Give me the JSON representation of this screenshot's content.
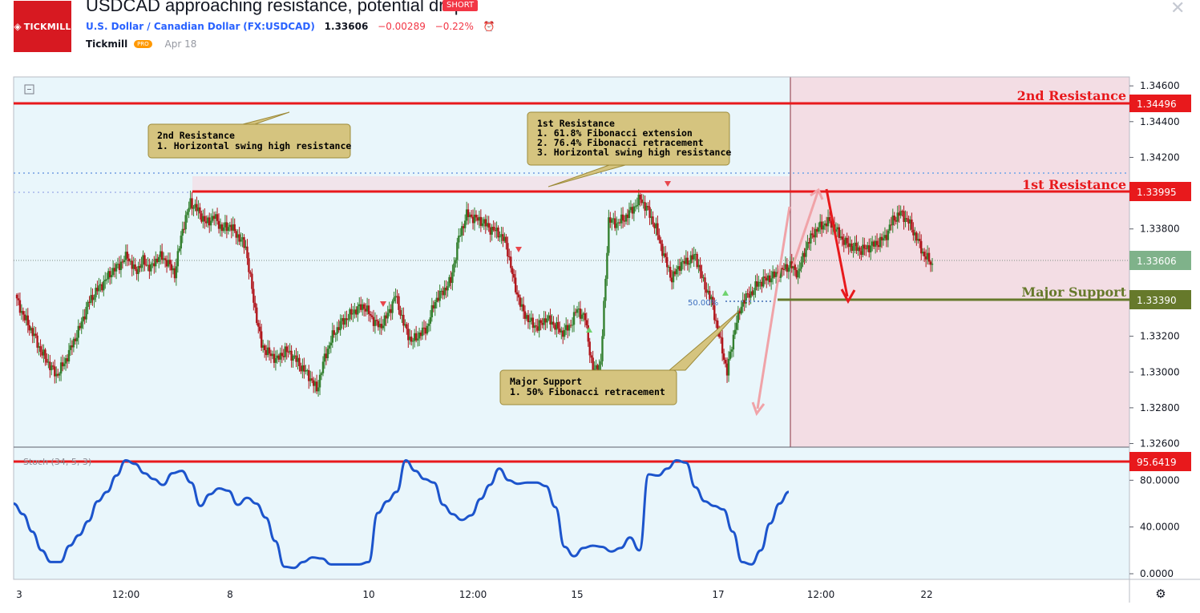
{
  "header": {
    "logo_text": "TICKMILL",
    "title": "USDCAD approaching resistance, potential drop!",
    "badge": "SHORT",
    "symbol_name": "U.S. Dollar / Canadian Dollar",
    "symbol_code": "(FX:USDCAD)",
    "price": "1.33606",
    "change": "−0.00289",
    "change_pct": "−0.22%",
    "author": "Tickmill",
    "author_badge": "PRO",
    "date": "Apr 18",
    "alarm_icon": "alarm-clock-icon",
    "close_icon": "close-icon"
  },
  "colors": {
    "resistance": "#e8191c",
    "support": "#66792b",
    "current": "#7fb28a",
    "up_candle": "#33802f",
    "down_candle": "#b0161c",
    "stoch": "#1c54cc",
    "zone": "#f3dde4",
    "background": "#e9f6fb",
    "callout_fill": "#d5c47f"
  },
  "labels": {
    "second_resistance": "2nd Resistance",
    "first_resistance": "1st Resistance",
    "major_support": "Major Support",
    "fib_50": "50.00%",
    "stoch_indicator": "Stoch (34, 5, 3)"
  },
  "callouts": {
    "second_res": [
      "2nd Resistance",
      "1. Horizontal swing high resistance"
    ],
    "first_res": [
      "1st Resistance",
      "1. 61.8% Fibonacci extension",
      "2. 76.4% Fibonacci retracement",
      "3. Horizontal swing high resistance"
    ],
    "support": [
      "Major Support",
      "1. 50% Fibonacci retracement"
    ]
  },
  "chart_data": [
    {
      "type": "candlestick",
      "symbol": "USDCAD",
      "y_ticks": [
        "1.34600",
        "1.34400",
        "1.34200",
        "1.34000",
        "1.33800",
        "1.33600",
        "1.33400",
        "1.33200",
        "1.33000",
        "1.32800",
        "1.32600"
      ],
      "ylim": [
        1.3258,
        1.3465
      ],
      "x_ticks": [
        "3",
        "12:00",
        "8",
        "10",
        "12:00",
        "15",
        "17",
        "12:00",
        "22"
      ],
      "price_labels": {
        "second_resistance": "1.34496",
        "first_resistance": "1.33995",
        "current": "1.33606",
        "major_support": "1.33390"
      },
      "levels": {
        "second_resistance": 1.34496,
        "first_resistance": 1.33995,
        "current": 1.33606,
        "major_support": 1.3339
      },
      "close_path": [
        1.334,
        1.333,
        1.3322,
        1.3312,
        1.3305,
        1.3298,
        1.3305,
        1.3315,
        1.3325,
        1.3338,
        1.3345,
        1.335,
        1.3356,
        1.336,
        1.3365,
        1.3356,
        1.3362,
        1.3358,
        1.3365,
        1.3362,
        1.3355,
        1.338,
        1.3395,
        1.339,
        1.3383,
        1.3387,
        1.338,
        1.3382,
        1.3376,
        1.337,
        1.334,
        1.3315,
        1.331,
        1.3307,
        1.3312,
        1.3309,
        1.3303,
        1.3298,
        1.329,
        1.3308,
        1.332,
        1.3327,
        1.3331,
        1.3335,
        1.3337,
        1.333,
        1.3325,
        1.3332,
        1.3343,
        1.3327,
        1.3317,
        1.3321,
        1.3325,
        1.334,
        1.3345,
        1.3351,
        1.3375,
        1.3388,
        1.3386,
        1.3384,
        1.338,
        1.3378,
        1.3372,
        1.335,
        1.3335,
        1.3328,
        1.3325,
        1.333,
        1.3327,
        1.3322,
        1.3325,
        1.3335,
        1.333,
        1.33,
        1.3305,
        1.3385,
        1.3383,
        1.3386,
        1.3391,
        1.3397,
        1.339,
        1.338,
        1.3365,
        1.3352,
        1.336,
        1.3362,
        1.3365,
        1.335,
        1.334,
        1.332,
        1.33,
        1.3325,
        1.334,
        1.3344,
        1.335,
        1.3352,
        1.3354,
        1.3357,
        1.336,
        1.3355,
        1.337,
        1.3378,
        1.3382,
        1.3384,
        1.3378,
        1.3372,
        1.337,
        1.3368,
        1.337,
        1.3372,
        1.3375,
        1.3385,
        1.3389,
        1.3384,
        1.3375,
        1.3365,
        1.33606
      ],
      "annotations": [
        "2nd Resistance",
        "1st Resistance",
        "Major Support",
        "50.00%"
      ]
    },
    {
      "type": "line",
      "name": "Stoch (34, 5, 3)",
      "y_ticks": [
        "80.0000",
        "40.0000",
        "0.0000"
      ],
      "ylim": [
        -6,
        110
      ],
      "level_label": "95.6419",
      "level": 95.6419,
      "values": [
        60,
        51,
        36,
        20,
        10,
        10,
        24,
        33,
        45,
        62,
        70,
        84,
        97,
        94,
        86,
        81,
        76,
        86,
        88,
        78,
        58,
        68,
        73,
        71,
        59,
        65,
        60,
        48,
        28,
        6,
        5,
        10,
        14,
        13,
        8,
        8,
        8,
        8,
        10,
        52,
        62,
        70,
        97,
        88,
        81,
        78,
        59,
        51,
        46,
        50,
        64,
        76,
        90,
        80,
        77,
        78,
        78,
        75,
        57,
        23,
        15,
        22,
        24,
        23,
        19,
        22,
        31,
        20,
        85,
        84,
        90,
        97,
        95,
        74,
        62,
        58,
        55,
        36,
        10,
        8,
        20,
        43,
        60,
        70
      ]
    }
  ]
}
